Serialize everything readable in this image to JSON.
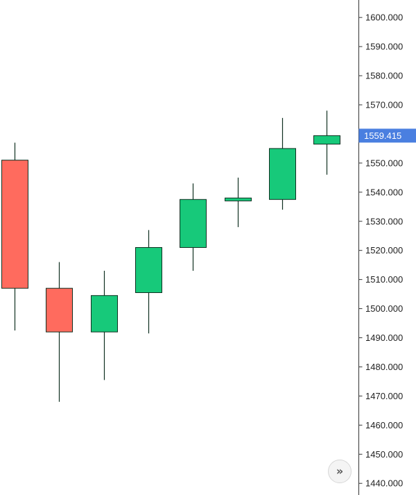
{
  "chart_data": {
    "type": "candlestick",
    "candles": [
      {
        "open": 1551.0,
        "high": 1557.0,
        "low": 1492.5,
        "close": 1507.0
      },
      {
        "open": 1507.0,
        "high": 1516.0,
        "low": 1468.0,
        "close": 1492.0
      },
      {
        "open": 1492.0,
        "high": 1513.0,
        "low": 1475.5,
        "close": 1504.5
      },
      {
        "open": 1505.5,
        "high": 1527.0,
        "low": 1491.5,
        "close": 1521.0
      },
      {
        "open": 1521.0,
        "high": 1543.0,
        "low": 1513.0,
        "close": 1537.5
      },
      {
        "open": 1537.0,
        "high": 1545.0,
        "low": 1528.0,
        "close": 1538.0
      },
      {
        "open": 1537.5,
        "high": 1565.5,
        "low": 1534.0,
        "close": 1555.0
      },
      {
        "open": 1556.5,
        "high": 1568.0,
        "low": 1546.0,
        "close": 1559.415
      }
    ],
    "y_ticks": [
      "1600.000",
      "1590.000",
      "1580.000",
      "1570.000",
      "1550.000",
      "1540.000",
      "1530.000",
      "1520.000",
      "1510.000",
      "1500.000",
      "1490.000",
      "1480.000",
      "1470.000",
      "1460.000",
      "1450.000",
      "1440.000"
    ],
    "ylim": [
      1436,
      1606
    ],
    "last_price_label": "1559.415",
    "last_price_value": 1559.415,
    "grid": false,
    "colors": {
      "up": "#17c97a",
      "down": "#ff6b5e",
      "wick": "#0f2f20",
      "price_label_bg": "#4a7fe0",
      "axis_line": "#333333"
    }
  },
  "controls": {
    "scroll_to_latest_icon": "double-chevron-right-icon",
    "scroll_to_latest_glyph": "»"
  }
}
